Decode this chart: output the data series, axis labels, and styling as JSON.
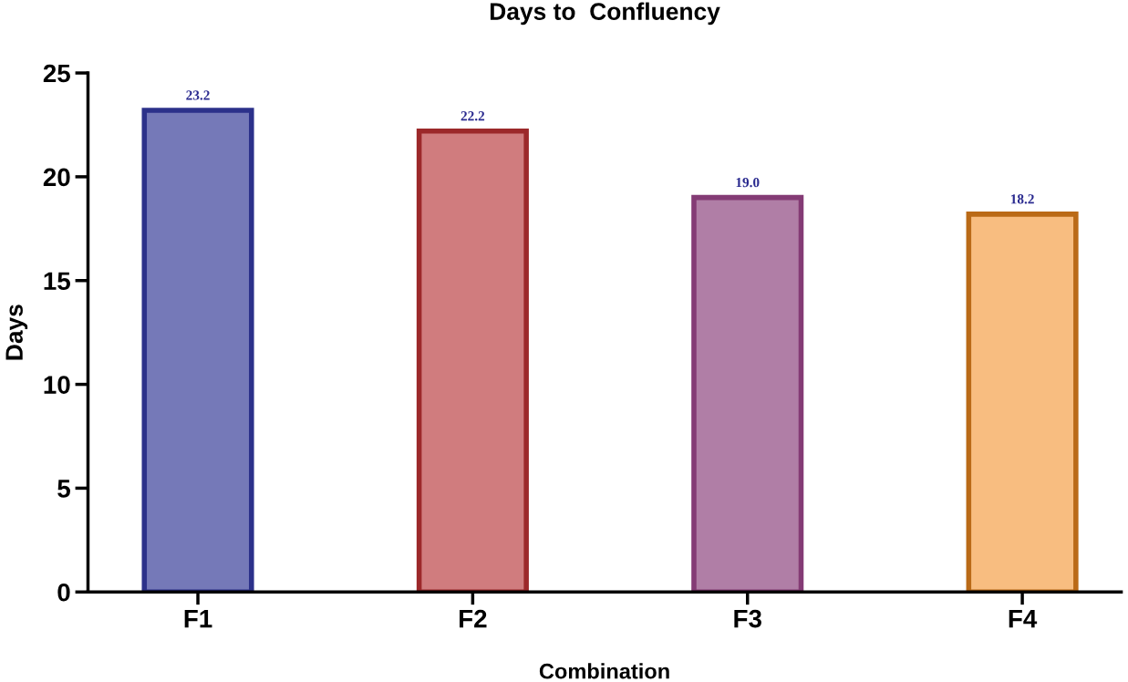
{
  "chart_data": {
    "type": "bar",
    "title": "Days to  Confluency",
    "xlabel": "Combination",
    "ylabel": "Days",
    "categories": [
      "F1",
      "F2",
      "F3",
      "F4"
    ],
    "values": [
      23.2,
      22.2,
      19.0,
      18.2
    ],
    "value_labels": [
      "23.2",
      "22.2",
      "19.0",
      "18.2"
    ],
    "colors": [
      "#7579b8",
      "#d07c7e",
      "#b07ea6",
      "#f8bd80"
    ],
    "ylim": [
      0,
      25
    ],
    "yticks": [
      0,
      5,
      10,
      15,
      20,
      25
    ],
    "grid": false
  }
}
